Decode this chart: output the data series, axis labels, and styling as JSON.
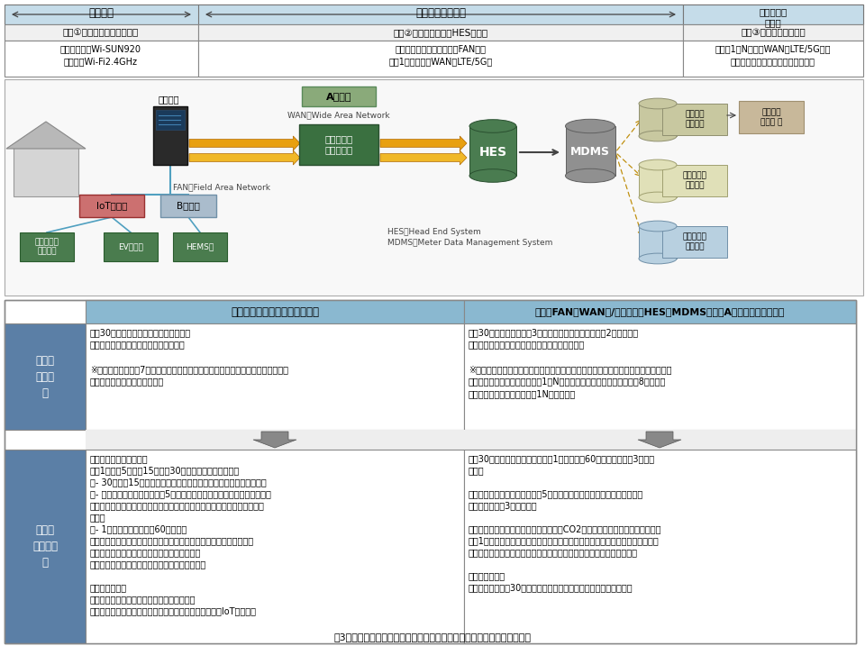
{
  "title": "図3　次世代スマートメーターシステム（低圧）の標準機能（決定事項）",
  "bg_color": "#ffffff",
  "header_bg": "#b8d4e8",
  "header1_label": "一般住宅",
  "header2_label": "一般送配電事業者",
  "header3_label": "各小売電気\n事業者",
  "domain1": "領域①スマートメーターまで",
  "domain2": "領域②通信システム（HES）まで",
  "domain3": "領域③運用管理システム",
  "comm1": "通信：「主」Wi-SUN920\n　「従」Wi-Fi2.4GHz",
  "comm2": "通信：マルチホップ通信（FAN）、\n　　1対Ｎ通信（WAN：LTE/5G）",
  "comm3": "通信：1対N通信（WAN：LTE/5G）、\n　一般送配電事業者と小売間の通信",
  "meter_std_header": "メーター（計量器）の標準機能",
  "comm_std_header": "通信（FAN・WAN）/システム（HES・MDMS）　（Aルート）の標準機能",
  "current_label": "現行の\n標準機\n能",
  "next_label": "次世代\nの標準機\n能",
  "current_meter_text": "・　30分値の有効電力量を４５日間保存\n・　有効電力と電流の瘜時値を測定可能\n\n※　現行では東電他7社が採用している「一体型」と、関電・九電が採用している\n　「ユニット型」が存在する。",
  "current_comm_text": "・　30分値有効電力量を3０分毎に６０分以内に送付（2年間保存）\n・　有効電力と電流の瘜時値を必要なときに送付\n\n※　現行では一般送配電事業者が構築した通信網を活用したマルチホップ方式や、携\n　帯電話会社の回線を活用した1：N方式が採用されている。（東電他8社：マル\n　チホップ方式主体、九電：1N方式主体）",
  "next_meter_text": "（計測精度、保存期間）\n・　1分値、5分値、15分値、30分値の有効電力量を取得\n　- 30分値、15分値の有効電力量は料金精算に必要な任意の期間保存\n　- 有効・無効電力量・電圧の5分値はサーバーに移動するための時間や、\n　　災害時等に事後的にデータ収集を行うための時間等を加味した期間保\n　　存\n　- 1分値の有効電力量は60分間保存\n（注１）将来的に市場制度等が変更された場合に、１５分値有効電力\n　量をソフトウェア変更により送信可能とする\n　（注２）Ｂルート経由の取得項目は今後精査。\n\n（その他機能）\n・　遠隔アンペア制御機能（予約機能付き）\n・　ガス水道メーター・特例計量器の検針や遠隔開閉（IoTルート）",
  "next_comm_text": "・　30分値有効電力量（注１）を1２０分毎に60分以内に送付（3年間保\n　存）\n\n・　有効・無効電力量・電圧の5分値を一定割合取得し一定期間（注２）\n　ごとに送付（3年間保存）\n\n（注２）電力損失削減、電圧適正運用、CO2排出削減を進めるため、需要家の\n　　1０％程度以上のヒストリカルデータを数日以内に、需要家の３％程度以上\n　のリアルタイムデータを１０分以内に取得できる処理能力を構築する\n\n（その他機能）\n・　ボーリング・30分値の有効活用による停電検知・復旧検知機能"
}
